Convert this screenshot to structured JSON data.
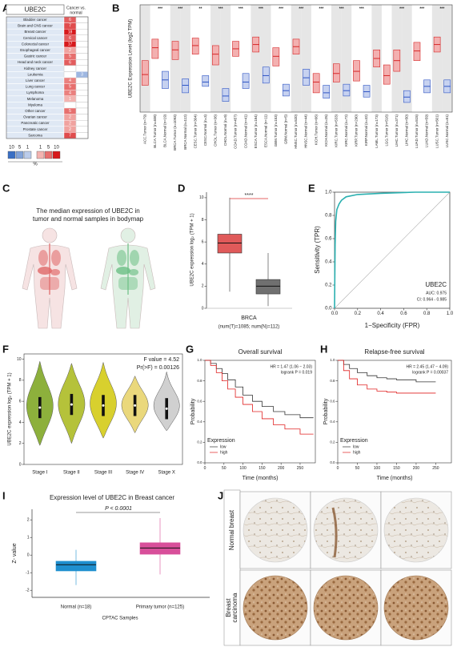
{
  "panels": {
    "A": {
      "label": "A",
      "title": "UBE2C",
      "header": [
        "Cancer vs.",
        "normal"
      ],
      "rows": [
        {
          "name": "Bladder cancer",
          "up": 6,
          "down": null
        },
        {
          "name": "Brain and CNS cancer",
          "up": 7,
          "down": null
        },
        {
          "name": "Breast cancer",
          "up": 18,
          "down": null
        },
        {
          "name": "Cervical cancer",
          "up": 6,
          "down": null
        },
        {
          "name": "Colorectal cancer",
          "up": 17,
          "down": null
        },
        {
          "name": "Esophageal cancer",
          "up": 2,
          "down": null
        },
        {
          "name": "Gastric cancer",
          "up": 5,
          "down": null
        },
        {
          "name": "Head and neck cancer",
          "up": 6,
          "down": null
        },
        {
          "name": "Kidney cancer",
          "up": null,
          "down": null
        },
        {
          "name": "Leukemia",
          "up": null,
          "down": 3
        },
        {
          "name": "Liver cancer",
          "up": 4,
          "down": null
        },
        {
          "name": "Lung cancer",
          "up": 5,
          "down": null
        },
        {
          "name": "Lymphoma",
          "up": 4,
          "down": null
        },
        {
          "name": "Melanoma",
          "up": 1,
          "down": null
        },
        {
          "name": "Myeloma",
          "up": null,
          "down": null
        },
        {
          "name": "Other cancer",
          "up": 5,
          "down": null
        },
        {
          "name": "Ovarian cancer",
          "up": 2,
          "down": null
        },
        {
          "name": "Pancreatic cancer",
          "up": 2,
          "down": null
        },
        {
          "name": "Prostate cancer",
          "up": 2,
          "down": null
        },
        {
          "name": "Sarcoma",
          "up": 7,
          "down": null
        }
      ],
      "up_color": "#d7191c",
      "down_color": "#3a6fc4",
      "legend": {
        "down": [
          10,
          5,
          1
        ],
        "up": [
          1,
          5,
          10
        ],
        "unit": "%"
      }
    },
    "B": {
      "label": "B",
      "ylabel": "UBE2C Expression Level (log2 TPM)",
      "ylim": [
        0,
        10
      ],
      "categories": [
        "ACC.Tumor (n=79)",
        "BLCA.Tumor (n=408)",
        "BLCA.Normal (n=19)",
        "BRCA.Tumor (n=1093)",
        "BRCA.Normal (n=112)",
        "CESC.Tumor (n=304)",
        "CESC.Normal (n=3)",
        "CHOL.Tumor (n=36)",
        "CHOL.Normal (n=9)",
        "COAD.Tumor (n=457)",
        "COAD.Normal (n=41)",
        "ESCA.Tumor (n=184)",
        "ESCA.Normal (n=11)",
        "GBM.Tumor (n=153)",
        "GBM.Normal (n=5)",
        "HNSC.Tumor (n=520)",
        "HNSC.Normal (n=44)",
        "KICH.Tumor (n=66)",
        "KICH.Normal (n=25)",
        "KIRC.Tumor (n=533)",
        "KIRC.Normal (n=72)",
        "KIRP.Tumor (n=290)",
        "KIRP.Normal (n=32)",
        "LAML.Tumor (n=173)",
        "LGG.Tumor (n=516)",
        "LIHC.Tumor (n=371)",
        "LIHC.Normal (n=50)",
        "LUAD.Tumor (n=515)",
        "LUAD.Normal (n=59)",
        "LUSC.Tumor (n=501)",
        "LUSC.Normal (n=51)"
      ],
      "q1": [
        2.5,
        5,
        2.2,
        4.9,
        1.8,
        5.4,
        2.4,
        4.4,
        1,
        5.2,
        2.2,
        5.6,
        2.7,
        4.3,
        1.5,
        5.4,
        2.5,
        1.8,
        1.3,
        2.8,
        1.5,
        2.9,
        1.4,
        4.2,
        2.6,
        3.8,
        0.9,
        4.8,
        1.8,
        5.6,
        1.8
      ],
      "median": [
        3.5,
        6,
        3,
        5.8,
        2.5,
        6.2,
        2.8,
        5.4,
        1.5,
        5.9,
        2.8,
        6.3,
        3.4,
        5.2,
        2,
        6.1,
        3.2,
        2.8,
        1.8,
        3.6,
        2,
        3.8,
        1.9,
        5,
        3.4,
        4.8,
        1.4,
        5.7,
        2.4,
        6.3,
        2.4
      ],
      "q3": [
        4.8,
        6.8,
        3.8,
        6.6,
        3.1,
        6.9,
        3.4,
        6.2,
        2.2,
        6.6,
        3.6,
        7,
        4.2,
        6,
        2.6,
        6.8,
        4,
        3.6,
        2.5,
        4.5,
        2.6,
        4.8,
        2.5,
        5.8,
        4.4,
        5.8,
        2,
        6.5,
        3,
        7,
        3
      ],
      "sig": [
        null,
        "***",
        null,
        "***",
        null,
        "**",
        null,
        "***",
        null,
        "***",
        null,
        "***",
        null,
        "***",
        null,
        "***",
        null,
        "***",
        null,
        "***",
        null,
        "***",
        null,
        null,
        null,
        "***",
        null,
        "***",
        null,
        "***",
        null
      ],
      "tumor_color": "#d62728",
      "normal_color": "#2f55c4"
    },
    "C": {
      "label": "C",
      "title": [
        "The median expression of UBE2C in",
        "tumor and normal samples in bodymap"
      ],
      "tumor_color": "#e06666",
      "normal_color": "#6cbf84"
    },
    "D": {
      "label": "D",
      "ylabel": "UBE2C expression log₂ (TPM + 1)",
      "xlabel": "BRCA",
      "note": "(num(T)=1085; num(N)=112)",
      "sig": "****",
      "ylim": [
        0,
        10.5
      ],
      "yticks": [
        0,
        2,
        4,
        6,
        8,
        10
      ],
      "boxes": [
        {
          "q1": 5.0,
          "median": 5.9,
          "q3": 6.7,
          "min": 1.5,
          "max": 10,
          "color": "#e05a5a"
        },
        {
          "q1": 1.3,
          "median": 2.0,
          "q3": 2.6,
          "min": 0.2,
          "max": 5.0,
          "color": "#707070"
        }
      ]
    },
    "E": {
      "label": "E",
      "ylabel": "Sensitivity (TPR)",
      "xlabel": "1−Specificity (FPR)",
      "xlim": [
        0,
        1
      ],
      "ylim": [
        0,
        1
      ],
      "xticks": [
        {
          "value": 0,
          "label": "0.0"
        },
        0.2,
        0.4,
        0.6,
        0.8,
        {
          "value": 1,
          "label": "1.0"
        }
      ],
      "yticks": [
        {
          "value": 0,
          "label": "0.0"
        },
        0.2,
        0.4,
        0.6,
        0.8,
        {
          "value": 1,
          "label": "1.0"
        }
      ],
      "x": [
        0,
        0.005,
        0.01,
        0.02,
        0.04,
        0.06,
        0.1,
        0.2,
        0.4,
        0.7,
        1
      ],
      "y": [
        0,
        0.55,
        0.75,
        0.85,
        0.9,
        0.93,
        0.96,
        0.98,
        0.99,
        1,
        1
      ],
      "color": "#2ab0b0",
      "name": "UBE2C",
      "auc": "AUC: 0.975",
      "ci": "CI: 0.964 - 0.985"
    },
    "F": {
      "label": "F",
      "fvalue": "F value = 4.52",
      "p": "Pr(>F) = 0.00126",
      "ylabel": "UBE2C expression log₂ (TPM + 1)",
      "ylim": [
        0,
        10.5
      ],
      "yticks": [
        0,
        2,
        4,
        6,
        8,
        10
      ],
      "categories": [
        "Stage I",
        "Stage II",
        "Stage III",
        "Stage IV",
        "Stage X"
      ],
      "median": [
        5.4,
        5.7,
        5.6,
        5.6,
        5.3
      ],
      "min": [
        1.8,
        2,
        2.5,
        3,
        3.2
      ],
      "max": [
        9.8,
        9.6,
        9.7,
        8.4,
        8.8
      ],
      "colors": [
        "#8db03c",
        "#b5c23a",
        "#d8d02e",
        "#ead87c",
        "#d0d0d0"
      ]
    },
    "G": {
      "label": "G",
      "title": "Overall survival",
      "hr": "HR = 1.47 (1.06 − 2.03)",
      "p": "logrank P = 0.019",
      "ylabel": "Probability",
      "xlabel": "Time (months)",
      "xlim": [
        0,
        290
      ],
      "ylim": [
        0,
        1
      ],
      "xticks": [
        0,
        50,
        100,
        150,
        200,
        250
      ],
      "yticks": [
        {
          "value": 0,
          "label": "0.0"
        },
        0.2,
        0.4,
        0.6,
        0.8,
        {
          "value": 1,
          "label": "1.0"
        }
      ],
      "legend_title": "Expression",
      "series": [
        {
          "name": "low",
          "color": "#333333",
          "x": [
            0,
            15,
            30,
            45,
            60,
            80,
            100,
            125,
            150,
            180,
            210,
            250,
            285
          ],
          "y": [
            1,
            0.97,
            0.92,
            0.87,
            0.81,
            0.74,
            0.66,
            0.6,
            0.55,
            0.5,
            0.47,
            0.44,
            0.44
          ]
        },
        {
          "name": "high",
          "color": "#e02020",
          "x": [
            0,
            15,
            30,
            45,
            60,
            80,
            100,
            125,
            150,
            180,
            210,
            250,
            285
          ],
          "y": [
            1,
            0.95,
            0.88,
            0.8,
            0.72,
            0.64,
            0.57,
            0.5,
            0.43,
            0.37,
            0.33,
            0.28,
            0.28
          ]
        }
      ]
    },
    "H": {
      "label": "H",
      "title": "Relapse-free survival",
      "hr": "HR = 2.45 (1.47 − 4.09)",
      "p": "logrank P = 0.00037",
      "ylabel": "Probability",
      "xlabel": "Time (months)",
      "xlim": [
        0,
        290
      ],
      "ylim": [
        0,
        1
      ],
      "xticks": [
        0,
        50,
        100,
        150,
        200,
        250
      ],
      "yticks": [
        {
          "value": 0,
          "label": "0.0"
        },
        0.2,
        0.4,
        0.6,
        0.8,
        {
          "value": 1,
          "label": "1.0"
        }
      ],
      "legend_title": "Expression",
      "series": [
        {
          "name": "low",
          "color": "#333333",
          "x": [
            0,
            15,
            30,
            50,
            75,
            100,
            125,
            150,
            200,
            250
          ],
          "y": [
            1,
            0.96,
            0.92,
            0.88,
            0.85,
            0.83,
            0.82,
            0.81,
            0.79,
            0.79
          ]
        },
        {
          "name": "high",
          "color": "#e02020",
          "x": [
            0,
            15,
            30,
            50,
            75,
            100,
            125,
            150,
            200,
            250
          ],
          "y": [
            1,
            0.9,
            0.82,
            0.76,
            0.72,
            0.7,
            0.69,
            0.68,
            0.68,
            0.68
          ]
        }
      ]
    },
    "I": {
      "label": "I",
      "title": "Expression level of UBE2C in Breast cancer",
      "p": "P < 0.0001",
      "ylabel": "Z- value",
      "xlabel": "CPTAC Samples",
      "ylim": [
        -2.4,
        2.6
      ],
      "yticks": [
        -2,
        -1,
        0,
        1,
        2
      ],
      "categories": [
        "Normal (n=18)",
        "Primary tumor (n=125)"
      ],
      "boxes": [
        {
          "q1": -0.9,
          "median": -0.55,
          "q3": -0.35,
          "min": -1.7,
          "max": 0.3,
          "color": "#1f8fcf"
        },
        {
          "q1": 0.05,
          "median": 0.4,
          "q3": 0.7,
          "min": -1.1,
          "max": 2.1,
          "color": "#d84f9a"
        }
      ]
    },
    "J": {
      "label": "J",
      "rows": [
        [
          "Normal breast"
        ],
        [
          "Breast",
          "carcinoma"
        ]
      ]
    }
  }
}
